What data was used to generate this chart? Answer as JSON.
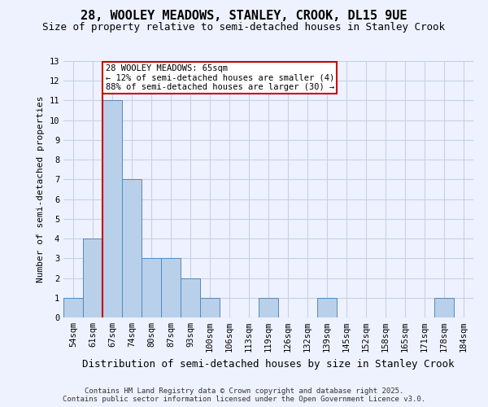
{
  "title_line1": "28, WOOLEY MEADOWS, STANLEY, CROOK, DL15 9UE",
  "title_line2": "Size of property relative to semi-detached houses in Stanley Crook",
  "xlabel": "Distribution of semi-detached houses by size in Stanley Crook",
  "ylabel": "Number of semi-detached properties",
  "categories": [
    "54sqm",
    "61sqm",
    "67sqm",
    "74sqm",
    "80sqm",
    "87sqm",
    "93sqm",
    "100sqm",
    "106sqm",
    "113sqm",
    "119sqm",
    "126sqm",
    "132sqm",
    "139sqm",
    "145sqm",
    "152sqm",
    "158sqm",
    "165sqm",
    "171sqm",
    "178sqm",
    "184sqm"
  ],
  "values": [
    1,
    4,
    11,
    7,
    3,
    3,
    2,
    1,
    0,
    0,
    1,
    0,
    0,
    1,
    0,
    0,
    0,
    0,
    0,
    1,
    0
  ],
  "bar_color": "#b8d0ea",
  "bar_edge_color": "#5588bb",
  "red_line_index": 2,
  "red_line_color": "#cc0000",
  "annotation_text": "28 WOOLEY MEADOWS: 65sqm\n← 12% of semi-detached houses are smaller (4)\n88% of semi-detached houses are larger (30) →",
  "annotation_box_facecolor": "#ffffff",
  "annotation_box_edgecolor": "#cc0000",
  "ylim": [
    0,
    13
  ],
  "yticks": [
    0,
    1,
    2,
    3,
    4,
    5,
    6,
    7,
    8,
    9,
    10,
    11,
    12,
    13
  ],
  "background_color": "#eef2ff",
  "grid_color": "#c8d0e0",
  "footnote": "Contains HM Land Registry data © Crown copyright and database right 2025.\nContains public sector information licensed under the Open Government Licence v3.0.",
  "title_fontsize": 11,
  "subtitle_fontsize": 9,
  "ylabel_fontsize": 8,
  "xlabel_fontsize": 9,
  "tick_fontsize": 7.5,
  "annotation_fontsize": 7.5,
  "footnote_fontsize": 6.5
}
